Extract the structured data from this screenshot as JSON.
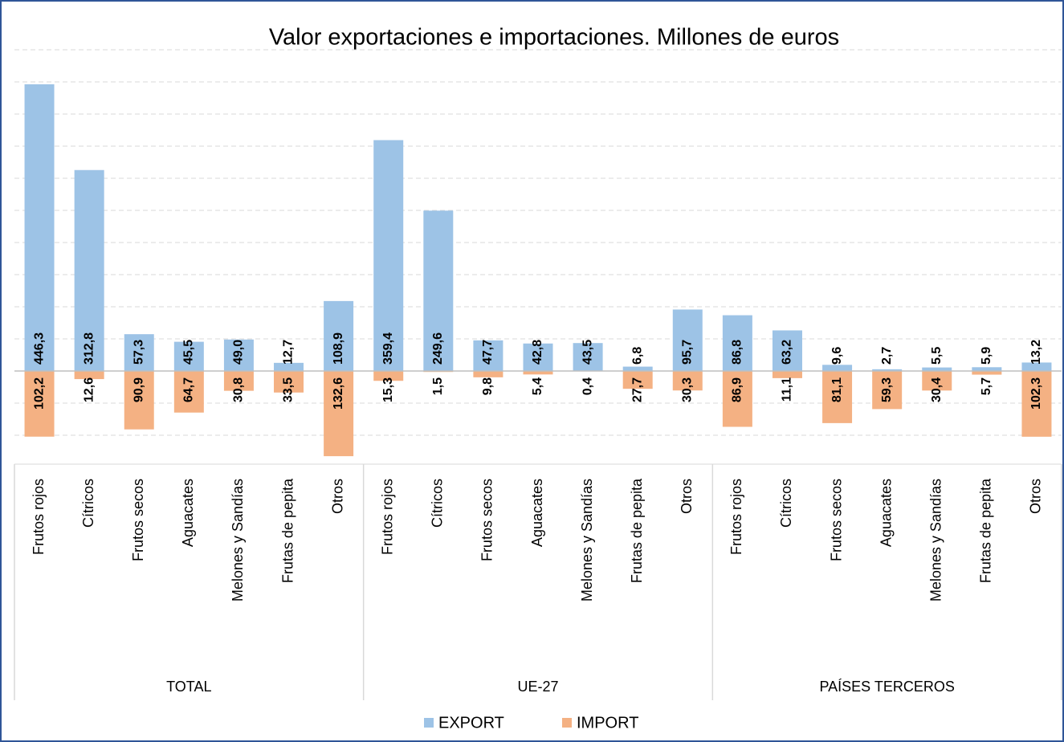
{
  "chart_data": {
    "type": "bar",
    "title": "Valor exportaciones e importaciones. Millones de euros",
    "groups": [
      "TOTAL",
      "UE-27",
      "PAÍSES TERCEROS"
    ],
    "categories": [
      "Frutos rojos",
      "Cítricos",
      "Frutos secos",
      "Aguacates",
      "Melones y Sandías",
      "Frutas de pepita",
      "Otros",
      "Frutos rojos",
      "Cítricos",
      "Frutos secos",
      "Aguacates",
      "Melones y Sandías",
      "Frutas de pepita",
      "Otros",
      "Frutos rojos",
      "Cítricos",
      "Frutos secos",
      "Aguacates",
      "Melones y Sandías",
      "Frutas de pepita",
      "Otros"
    ],
    "series": [
      {
        "name": "EXPORT",
        "color": "#9dc3e6",
        "values": [
          446.3,
          312.8,
          57.3,
          45.5,
          49.0,
          12.7,
          108.9,
          359.4,
          249.6,
          47.7,
          42.8,
          43.5,
          6.8,
          95.7,
          86.8,
          63.2,
          9.6,
          2.7,
          5.5,
          5.9,
          13.2
        ],
        "value_labels": [
          "446,3",
          "312,8",
          "57,3",
          "45,5",
          "49,0",
          "12,7",
          "108,9",
          "359,4",
          "249,6",
          "47,7",
          "42,8",
          "43,5",
          "6,8",
          "95,7",
          "86,8",
          "63,2",
          "9,6",
          "2,7",
          "5,5",
          "5,9",
          "13,2"
        ]
      },
      {
        "name": "IMPORT",
        "color": "#f4b183",
        "values": [
          -102.2,
          -12.6,
          -90.9,
          -64.7,
          -30.8,
          -33.5,
          -132.6,
          -15.3,
          -1.5,
          -9.8,
          -5.4,
          -0.4,
          -27.7,
          -30.3,
          -86.9,
          -11.1,
          -81.1,
          -59.3,
          -30.4,
          -5.7,
          -102.3
        ],
        "value_labels": [
          "102,2",
          "12,6",
          "90,9",
          "64,7",
          "30,8",
          "33,5",
          "132,6",
          "15,3",
          "1,5",
          "9,8",
          "5,4",
          "0,4",
          "27,7",
          "30,3",
          "86,9",
          "11,1",
          "81,1",
          "59,3",
          "30,4",
          "5,7",
          "102,3"
        ]
      }
    ],
    "ylim": [
      -145,
      500
    ],
    "yticks": [
      -100,
      -50,
      0,
      50,
      100,
      150,
      200,
      250,
      300,
      350,
      400,
      450,
      500
    ],
    "grid": true
  }
}
